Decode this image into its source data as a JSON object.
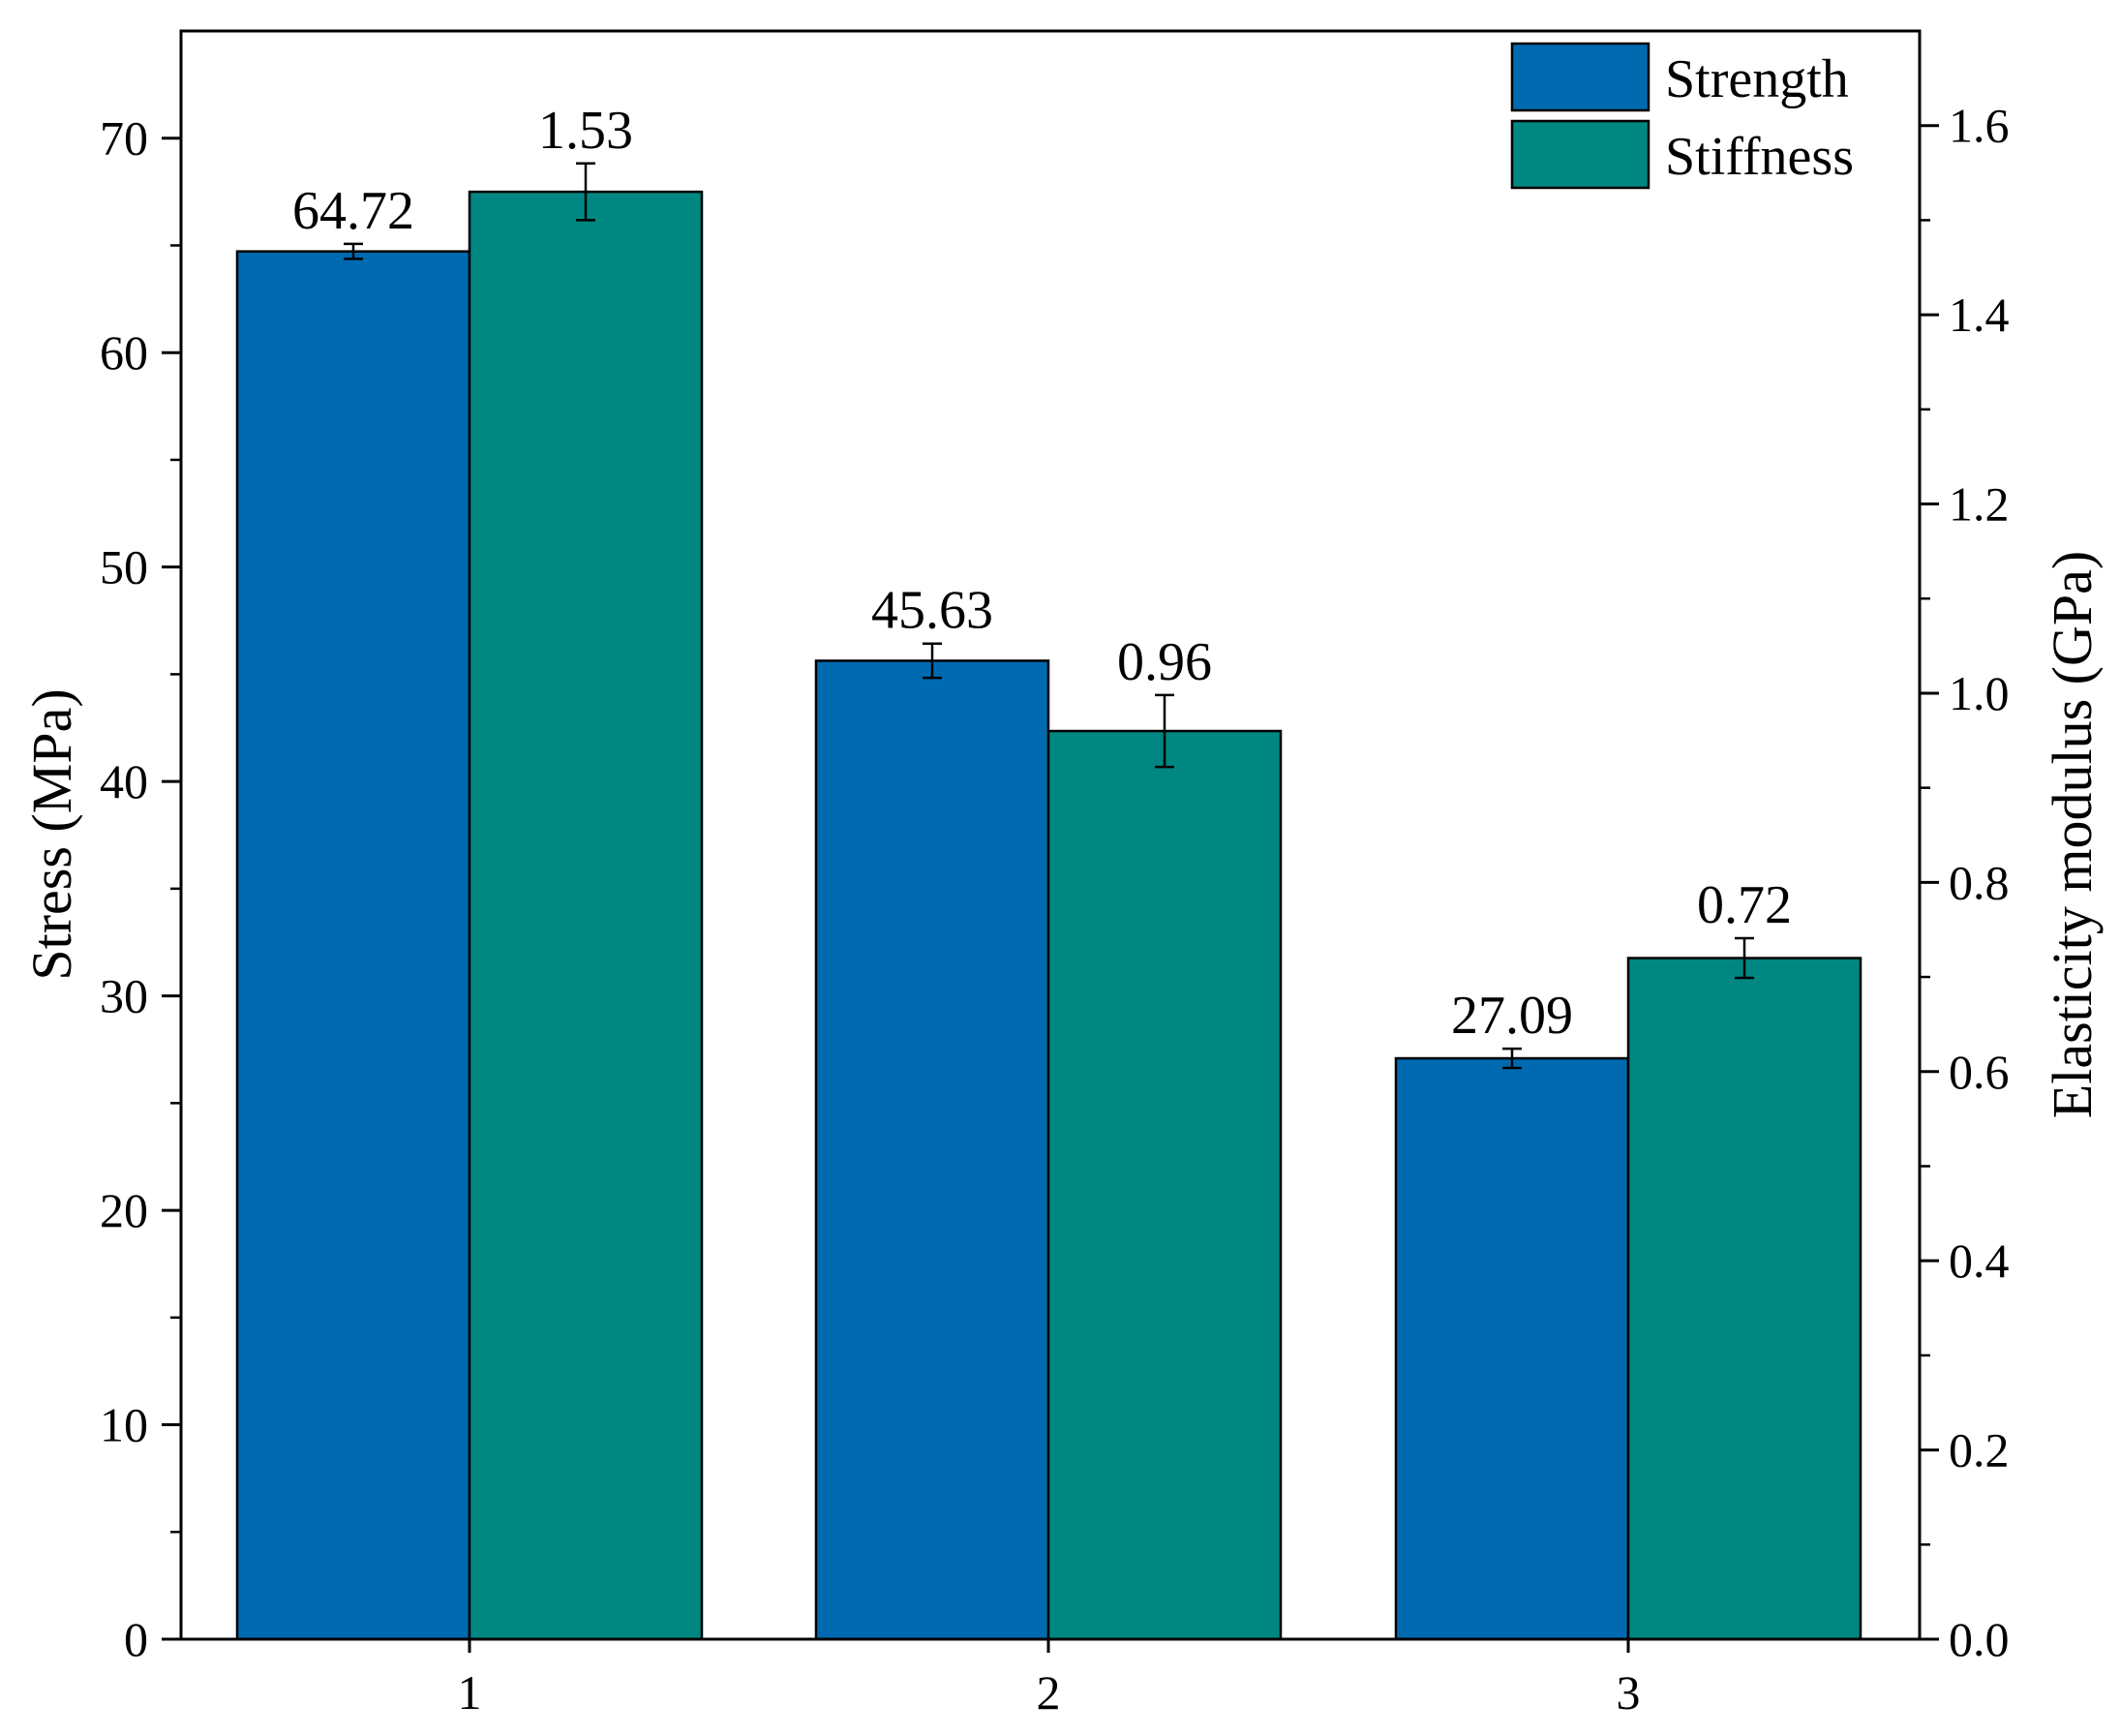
{
  "chart_data": {
    "type": "bar",
    "categories": [
      "1",
      "2",
      "3"
    ],
    "series": [
      {
        "name": "Strength",
        "axis": "left",
        "color": "#006AB1",
        "values": [
          64.72,
          45.63,
          27.09
        ],
        "errors": [
          0.35,
          0.8,
          0.45
        ],
        "labels": [
          "64.72",
          "45.63",
          "27.09"
        ]
      },
      {
        "name": "Stiffness",
        "axis": "right",
        "color": "#008782",
        "values": [
          1.53,
          0.96,
          0.72
        ],
        "errors": [
          0.03,
          0.038,
          0.021
        ],
        "labels": [
          "1.53",
          "0.96",
          "0.72"
        ]
      }
    ],
    "xlabel": "",
    "ylabel": "Stress (MPa)",
    "y2label": "Elasticity modulus (GPa)",
    "ylim": [
      0,
      75
    ],
    "y2lim": [
      0,
      1.7
    ],
    "yticks": [
      0,
      10,
      20,
      30,
      40,
      50,
      60,
      70
    ],
    "ytick_labels": [
      "0",
      "10",
      "20",
      "30",
      "40",
      "50",
      "60",
      "70"
    ],
    "y2ticks": [
      0,
      0.2,
      0.4,
      0.6,
      0.8,
      1.0,
      1.2,
      1.4,
      1.6
    ],
    "y2tick_labels": [
      "0.0",
      "0.2",
      "0.4",
      "0.6",
      "0.8",
      "1.0",
      "1.2",
      "1.4",
      "1.6"
    ],
    "legend_position": "top-right",
    "grid": false
  }
}
